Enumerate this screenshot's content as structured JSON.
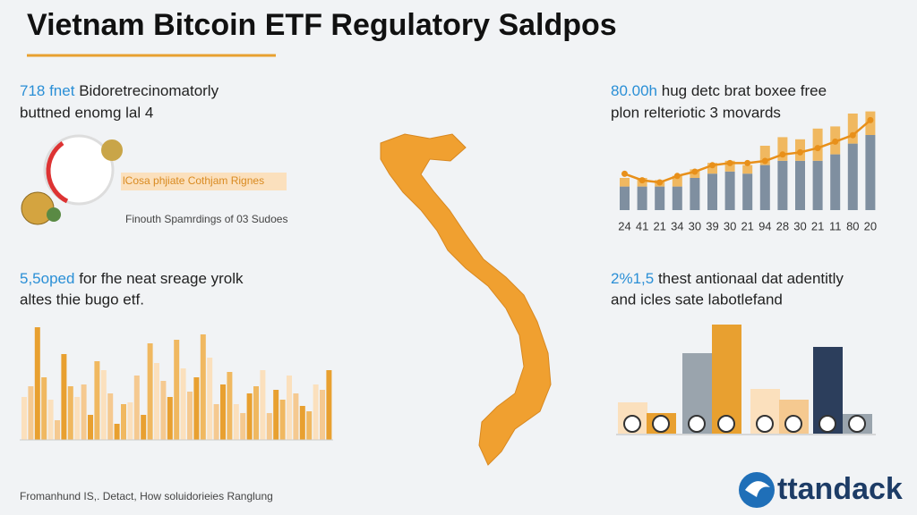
{
  "header": {
    "title": "Vietnam Bitcoin ETF Regulatory Saldpos"
  },
  "top_left": {
    "highlight": "718 fnet",
    "line1": "Bidoretrecinomatorly",
    "line2": "buttned enomg lal 4",
    "badge": "lCosa phjiate Cothjam Rignes",
    "caption": "Finouth Spamrdings of 03 Sudoes"
  },
  "mid_left": {
    "highlight": "5,5oped",
    "line1": "for fhe neat sreage yrolk",
    "line2": "altes thie bugo etf."
  },
  "left_bars": {
    "values": [
      48,
      60,
      126,
      70,
      45,
      22,
      96,
      60,
      48,
      62,
      28,
      88,
      78,
      52,
      18,
      40,
      42,
      72,
      28,
      108,
      86,
      66,
      48,
      112,
      80,
      54,
      70,
      118,
      92,
      40,
      62,
      76,
      40,
      30,
      52,
      60,
      78,
      30,
      56,
      45,
      72,
      52,
      38,
      32,
      62,
      56,
      78
    ]
  },
  "top_right": {
    "highlight": "80.00h",
    "line1": "hug detc brat boxee free",
    "line2": "plon relteriotic 3 movards",
    "labels": [
      "24",
      "41",
      "21",
      "34",
      "30",
      "39",
      "30",
      "21",
      "94",
      "28",
      "30",
      "21",
      "11",
      "80",
      "20"
    ],
    "base": [
      22,
      22,
      22,
      22,
      30,
      34,
      36,
      34,
      42,
      46,
      46,
      46,
      52,
      62,
      70
    ],
    "top": [
      8,
      8,
      6,
      10,
      8,
      10,
      10,
      8,
      18,
      22,
      20,
      30,
      26,
      28,
      22
    ],
    "line": [
      28,
      22,
      20,
      26,
      30,
      36,
      38,
      38,
      40,
      46,
      48,
      52,
      58,
      64,
      78
    ]
  },
  "mid_right": {
    "highlight": "2%1,5",
    "line1": "thest antionaal dat adentitly",
    "line2": "and icles sate labotlefand"
  },
  "right_bars": {
    "values": [
      35,
      23,
      90,
      122,
      50,
      38,
      97,
      22
    ]
  },
  "footer": {
    "text": "Fromanhund IS,. Detact, How soluidorieies Ranglung",
    "logo": "ttandack"
  }
}
